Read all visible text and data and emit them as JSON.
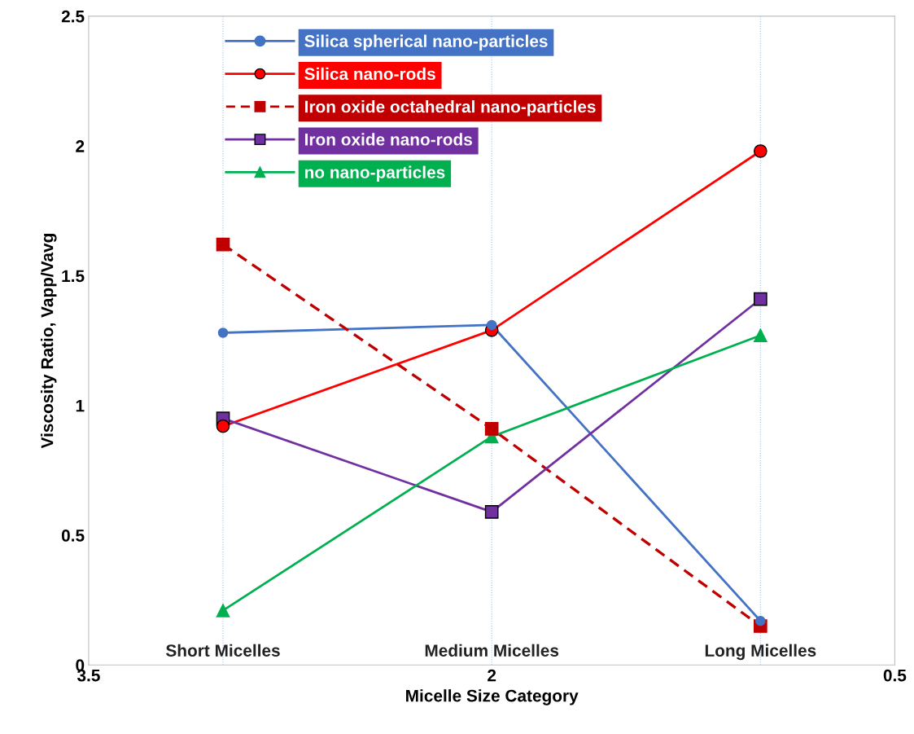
{
  "chart_data": {
    "type": "line",
    "xlabel": "Micelle Size Category",
    "ylabel": "Viscosity Ratio, Vapp/Vavg",
    "x": [
      3,
      2,
      1
    ],
    "xlim": [
      3.5,
      0.5
    ],
    "xticks": [
      3.5,
      2,
      0.5
    ],
    "ylim": [
      0,
      2.5
    ],
    "yticks": [
      0,
      0.5,
      1,
      1.5,
      2,
      2.5
    ],
    "series": [
      {
        "name": "Silica spherical nano-particles",
        "color": "#4472c4",
        "marker": "circle",
        "line_style": "solid",
        "values": [
          1.28,
          1.31,
          0.17
        ]
      },
      {
        "name": "Silica nano-rods",
        "color": "#ff0000",
        "marker": "circle",
        "line_style": "solid",
        "values": [
          0.92,
          1.29,
          1.98
        ]
      },
      {
        "name": "Iron oxide octahedral nano-particles",
        "color": "#c00000",
        "marker": "square",
        "line_style": "dashed",
        "values": [
          1.62,
          0.91,
          0.15
        ]
      },
      {
        "name": "Iron oxide nano-rods",
        "color": "#7030a0",
        "marker": "square",
        "line_style": "solid",
        "values": [
          0.95,
          0.59,
          1.41
        ]
      },
      {
        "name": "no nano-particles",
        "color": "#00b050",
        "marker": "triangle",
        "line_style": "solid",
        "values": [
          0.21,
          0.88,
          1.27
        ]
      }
    ],
    "ref_lines": [
      {
        "axis": "x",
        "value": 3,
        "color": "#9dc3e6",
        "line_style": "dotted"
      },
      {
        "axis": "x",
        "value": 2,
        "color": "#9dc3e6",
        "line_style": "dotted"
      },
      {
        "axis": "x",
        "value": 1,
        "color": "#9dc3e6",
        "line_style": "dotted"
      }
    ],
    "annotations": [
      {
        "text": "Short Micelles",
        "x": 3,
        "y": 0.05
      },
      {
        "text": "Medium Micelles",
        "x": 2,
        "y": 0.05
      },
      {
        "text": "Long Micelles",
        "x": 1,
        "y": 0.05
      }
    ],
    "grid": false,
    "legend": "top"
  }
}
